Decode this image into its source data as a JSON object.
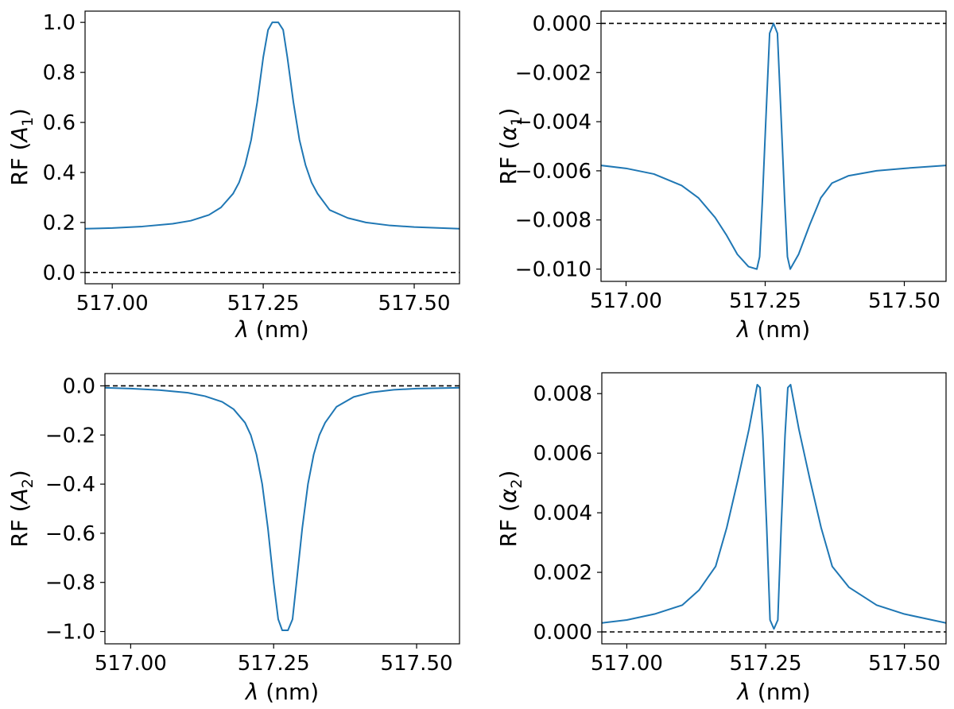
{
  "colors": {
    "series": "#1f77b4",
    "reference_line": "#000000"
  },
  "chart_data": [
    {
      "type": "line",
      "id": "p1",
      "ylabel_text": "RF (",
      "ylabel_sym": "A",
      "ylabel_sub": "1",
      "ylabel_close": ")",
      "ylabel_italic": true,
      "xlabel_sym": "λ",
      "xlabel_rest": " (nm)",
      "xlim": [
        516.955,
        517.575
      ],
      "ylim": [
        -0.045,
        1.045
      ],
      "xticks": [
        517.0,
        517.25,
        517.5
      ],
      "xtick_labels": [
        "517.00",
        "517.25",
        "517.50"
      ],
      "yticks": [
        0.0,
        0.2,
        0.4,
        0.6,
        0.8,
        1.0
      ],
      "ytick_labels": [
        "0.0",
        "0.2",
        "0.4",
        "0.6",
        "0.8",
        "1.0"
      ],
      "reference_line": 0.0,
      "grid": false,
      "series": [
        {
          "x": [
            516.955,
            517.0,
            517.05,
            517.1,
            517.13,
            517.16,
            517.18,
            517.2,
            517.21,
            517.22,
            517.23,
            517.24,
            517.25,
            517.258,
            517.265,
            517.275,
            517.283,
            517.29,
            517.3,
            517.31,
            517.32,
            517.33,
            517.34,
            517.36,
            517.39,
            517.42,
            517.46,
            517.5,
            517.575
          ],
          "y": [
            0.175,
            0.178,
            0.184,
            0.195,
            0.207,
            0.23,
            0.26,
            0.315,
            0.36,
            0.43,
            0.53,
            0.68,
            0.86,
            0.97,
            1.0,
            1.0,
            0.97,
            0.86,
            0.68,
            0.53,
            0.43,
            0.36,
            0.315,
            0.25,
            0.218,
            0.2,
            0.188,
            0.182,
            0.175
          ]
        }
      ]
    },
    {
      "type": "line",
      "id": "p2",
      "ylabel_text": "RF (",
      "ylabel_sym": "α",
      "ylabel_sub": "1",
      "ylabel_close": ")",
      "ylabel_italic": true,
      "xlabel_sym": "λ",
      "xlabel_rest": " (nm)",
      "xlim": [
        516.955,
        517.575
      ],
      "ylim": [
        -0.0105,
        0.0005
      ],
      "xticks": [
        517.0,
        517.25,
        517.5
      ],
      "xtick_labels": [
        "517.00",
        "517.25",
        "517.50"
      ],
      "yticks": [
        0.0,
        -0.002,
        -0.004,
        -0.006,
        -0.008,
        -0.01
      ],
      "ytick_labels": [
        "0.000",
        "−0.002",
        "−0.004",
        "−0.006",
        "−0.008",
        "−0.010"
      ],
      "reference_line": 0.0,
      "grid": false,
      "series": [
        {
          "x": [
            516.955,
            517.0,
            517.05,
            517.1,
            517.13,
            517.16,
            517.18,
            517.2,
            517.22,
            517.235,
            517.24,
            517.245,
            517.252,
            517.258,
            517.265,
            517.272,
            517.278,
            517.285,
            517.29,
            517.295,
            517.31,
            517.33,
            517.35,
            517.37,
            517.4,
            517.45,
            517.5,
            517.575
          ],
          "y": [
            -0.00578,
            -0.0059,
            -0.00613,
            -0.0066,
            -0.0071,
            -0.0079,
            -0.0086,
            -0.0094,
            -0.0099,
            -0.01,
            -0.0095,
            -0.0072,
            -0.0035,
            -0.0004,
            0.0,
            -0.0004,
            -0.0035,
            -0.0072,
            -0.0095,
            -0.01,
            -0.0094,
            -0.0082,
            -0.0071,
            -0.0065,
            -0.0062,
            -0.006,
            -0.0059,
            -0.00578
          ]
        }
      ]
    },
    {
      "type": "line",
      "id": "p3",
      "ylabel_text": "RF (",
      "ylabel_sym": "A",
      "ylabel_sub": "2",
      "ylabel_close": ")",
      "ylabel_italic": true,
      "xlabel_sym": "λ",
      "xlabel_rest": " (nm)",
      "xlim": [
        516.955,
        517.575
      ],
      "ylim": [
        -1.05,
        0.05
      ],
      "xticks": [
        517.0,
        517.25,
        517.5
      ],
      "xtick_labels": [
        "517.00",
        "517.25",
        "517.50"
      ],
      "yticks": [
        0.0,
        -0.2,
        -0.4,
        -0.6,
        -0.8,
        -1.0
      ],
      "ytick_labels": [
        "0.0",
        "−0.2",
        "−0.4",
        "−0.6",
        "−0.8",
        "−1.0"
      ],
      "reference_line": 0.0,
      "grid": false,
      "series": [
        {
          "x": [
            516.955,
            517.0,
            517.05,
            517.1,
            517.13,
            517.16,
            517.18,
            517.2,
            517.21,
            517.22,
            517.23,
            517.24,
            517.25,
            517.258,
            517.265,
            517.275,
            517.283,
            517.29,
            517.3,
            517.31,
            517.32,
            517.33,
            517.34,
            517.36,
            517.39,
            517.42,
            517.46,
            517.5,
            517.575
          ],
          "y": [
            -0.008,
            -0.011,
            -0.017,
            -0.028,
            -0.042,
            -0.065,
            -0.095,
            -0.15,
            -0.2,
            -0.28,
            -0.4,
            -0.58,
            -0.8,
            -0.95,
            -0.995,
            -0.995,
            -0.95,
            -0.8,
            -0.58,
            -0.4,
            -0.28,
            -0.2,
            -0.15,
            -0.085,
            -0.045,
            -0.027,
            -0.016,
            -0.011,
            -0.008
          ]
        }
      ]
    },
    {
      "type": "line",
      "id": "p4",
      "ylabel_text": "RF (",
      "ylabel_sym": "α",
      "ylabel_sub": "2",
      "ylabel_close": ")",
      "ylabel_italic": true,
      "xlabel_sym": "λ",
      "xlabel_rest": " (nm)",
      "xlim": [
        516.955,
        517.575
      ],
      "ylim": [
        -0.0004,
        0.0087
      ],
      "xticks": [
        517.0,
        517.25,
        517.5
      ],
      "xtick_labels": [
        "517.00",
        "517.25",
        "517.50"
      ],
      "yticks": [
        0.0,
        0.002,
        0.004,
        0.006,
        0.008
      ],
      "ytick_labels": [
        "0.000",
        "0.002",
        "0.004",
        "0.006",
        "0.008"
      ],
      "reference_line": 0.0,
      "grid": false,
      "series": [
        {
          "x": [
            516.955,
            517.0,
            517.05,
            517.1,
            517.13,
            517.16,
            517.18,
            517.2,
            517.22,
            517.235,
            517.24,
            517.245,
            517.252,
            517.258,
            517.265,
            517.272,
            517.278,
            517.285,
            517.29,
            517.295,
            517.31,
            517.33,
            517.35,
            517.37,
            517.4,
            517.45,
            517.5,
            517.575
          ],
          "y": [
            0.0003,
            0.0004,
            0.0006,
            0.0009,
            0.0014,
            0.0022,
            0.0035,
            0.0051,
            0.0068,
            0.0083,
            0.0082,
            0.0066,
            0.0035,
            0.0004,
            0.0001,
            0.0004,
            0.0035,
            0.0066,
            0.0082,
            0.0083,
            0.0068,
            0.0051,
            0.0035,
            0.0022,
            0.0015,
            0.0009,
            0.0006,
            0.0003
          ]
        }
      ]
    }
  ]
}
